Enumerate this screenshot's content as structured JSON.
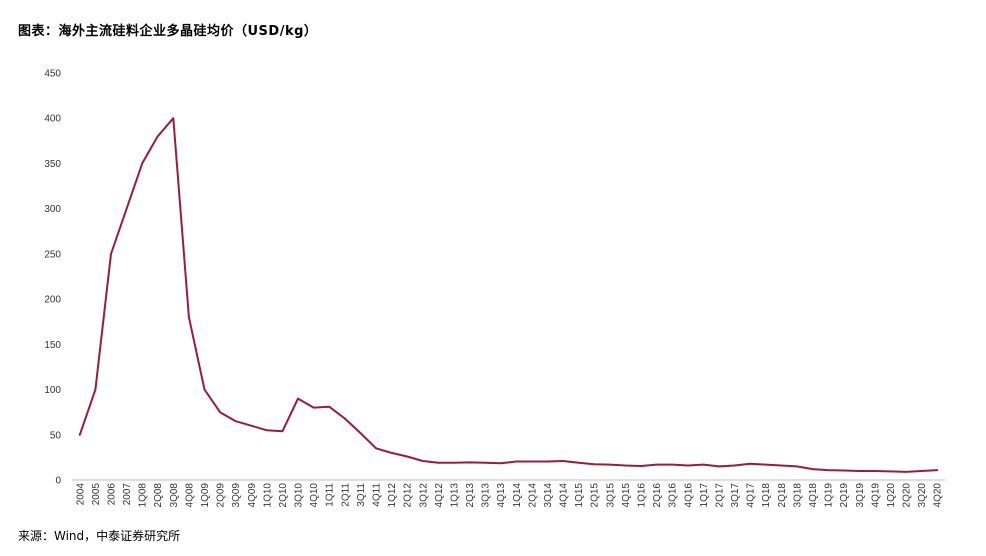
{
  "title": "图表：海外主流硅料企业多晶硅均价（USD/kg）",
  "source": "来源：Wind，中泰证券研究所",
  "colors": {
    "line": "#9b1b3e",
    "axis": "#bfbfbf",
    "text": "#333333"
  },
  "chart_data": {
    "type": "line",
    "title": "图表：海外主流硅料企业多晶硅均价（USD/kg）",
    "xlabel": "",
    "ylabel": "",
    "ylim": [
      0,
      450
    ],
    "yticks": [
      0,
      50,
      100,
      150,
      200,
      250,
      300,
      350,
      400,
      450
    ],
    "grid": false,
    "legend": "none",
    "categories": [
      "2004",
      "2005",
      "2006",
      "2007",
      "1Q08",
      "2Q08",
      "3Q08",
      "4Q08",
      "1Q09",
      "2Q09",
      "3Q09",
      "4Q09",
      "1Q10",
      "2Q10",
      "3Q10",
      "4Q10",
      "1Q11",
      "2Q11",
      "3Q11",
      "4Q11",
      "1Q12",
      "2Q12",
      "3Q12",
      "4Q12",
      "1Q13",
      "2Q13",
      "3Q13",
      "4Q13",
      "1Q14",
      "2Q14",
      "3Q14",
      "4Q14",
      "1Q15",
      "2Q15",
      "3Q15",
      "4Q15",
      "1Q16",
      "2Q16",
      "3Q16",
      "4Q16",
      "1Q17",
      "2Q17",
      "3Q17",
      "4Q17",
      "1Q18",
      "2Q18",
      "3Q18",
      "4Q18",
      "1Q19",
      "2Q19",
      "3Q19",
      "4Q19",
      "1Q20",
      "2Q20",
      "3Q20",
      "4Q20"
    ],
    "series": [
      {
        "values": [
          50,
          100,
          250,
          300,
          350,
          380,
          400,
          180,
          100,
          75,
          65,
          60,
          55,
          54,
          90,
          80,
          81,
          68,
          52,
          35,
          30,
          26,
          21,
          19,
          19,
          19.5,
          19,
          18.5,
          20.5,
          20.5,
          20.5,
          21,
          19,
          17.5,
          17,
          16,
          15.5,
          17,
          17,
          16,
          17,
          15,
          16,
          18,
          17,
          16,
          15,
          12,
          11,
          10.5,
          10,
          10,
          9.5,
          9,
          10,
          11
        ]
      }
    ]
  }
}
